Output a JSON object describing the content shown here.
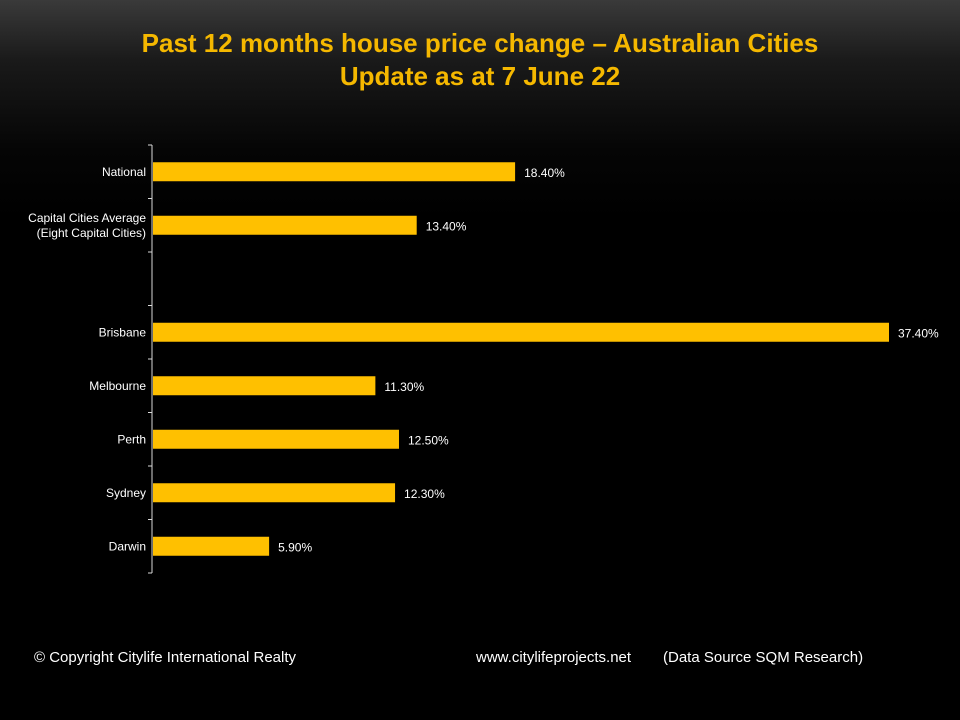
{
  "title": {
    "line1": "Past 12 months house price change – Australian Cities",
    "line2": "Update as at 7 June 22"
  },
  "colors": {
    "bar": "#ffc000",
    "title": "#f5b800",
    "text": "#ffffff",
    "axis": "#d9d9d9"
  },
  "chart_data": {
    "type": "bar",
    "orientation": "horizontal",
    "categories": [
      [
        "National"
      ],
      [
        "Capital Cities Average",
        "(Eight Capital Cities)"
      ],
      [
        ""
      ],
      [
        "Brisbane"
      ],
      [
        "Melbourne"
      ],
      [
        "Perth"
      ],
      [
        "Sydney"
      ],
      [
        "Darwin"
      ]
    ],
    "values": [
      18.4,
      13.4,
      null,
      37.4,
      11.3,
      12.5,
      12.3,
      5.9
    ],
    "data_labels": [
      "18.40%",
      "13.40%",
      "",
      "37.40%",
      "11.30%",
      "12.50%",
      "12.30%",
      "5.90%"
    ],
    "xlim": [
      0,
      37.4
    ],
    "grid": false,
    "legend": "none"
  },
  "footer": {
    "copyright": "© Copyright Citylife International  Realty",
    "website": "www.citylifeprojects.net",
    "source": "(Data Source SQM Research)"
  }
}
